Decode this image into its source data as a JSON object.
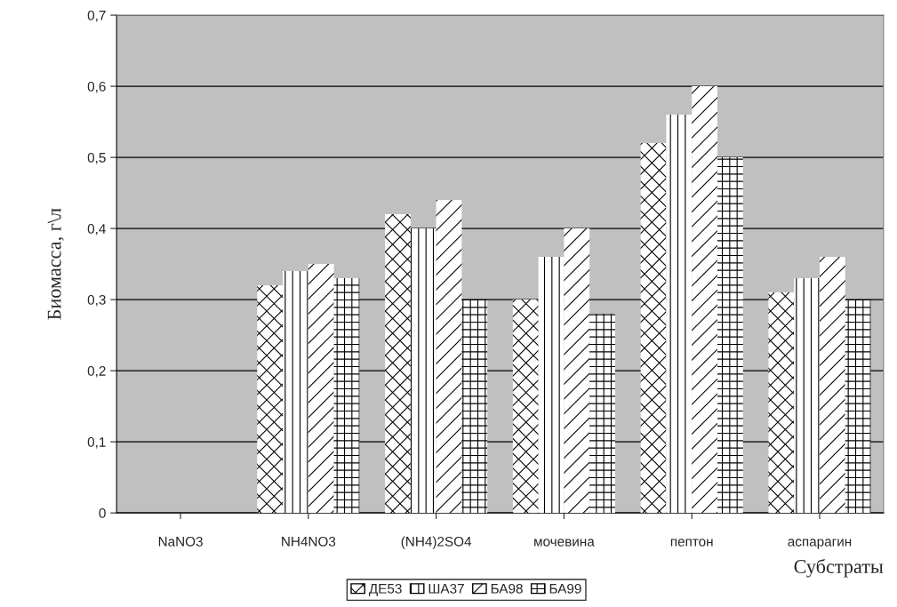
{
  "chart_data": {
    "type": "bar",
    "xlabel": "Субстраты",
    "ylabel": "Биомасса, г\\л",
    "categories": [
      "NaNO3",
      "NH4NO3",
      "(NH4)2SO4",
      "мочевина",
      "пептон",
      "аспарагин"
    ],
    "series": [
      {
        "name": "ДЕ53",
        "color": "#ffffff",
        "values": [
          0,
          0.32,
          0.42,
          0.3,
          0.52,
          0.31
        ]
      },
      {
        "name": "ША37",
        "color": "#ffffff",
        "values": [
          0,
          0.34,
          0.4,
          0.36,
          0.56,
          0.33
        ]
      },
      {
        "name": "БА98",
        "color": "#ffffff",
        "values": [
          0,
          0.35,
          0.44,
          0.4,
          0.6,
          0.36
        ]
      },
      {
        "name": "БА99",
        "color": "#ffffff",
        "values": [
          0,
          0.33,
          0.3,
          0.28,
          0.5,
          0.3
        ]
      }
    ],
    "ylim": [
      0,
      0.7
    ],
    "yticks": [
      0,
      {
        "value": 0.1,
        "label": "0,1"
      },
      {
        "value": 0.2,
        "label": "0,2"
      },
      {
        "value": 0.3,
        "label": "0,3"
      },
      {
        "value": 0.4,
        "label": "0,4"
      },
      {
        "value": 0.5,
        "label": "0,5"
      },
      {
        "value": 0.6,
        "label": "0,6"
      },
      {
        "value": 0.7,
        "label": "0,7"
      }
    ],
    "grid": "y",
    "legend": "bottom"
  }
}
